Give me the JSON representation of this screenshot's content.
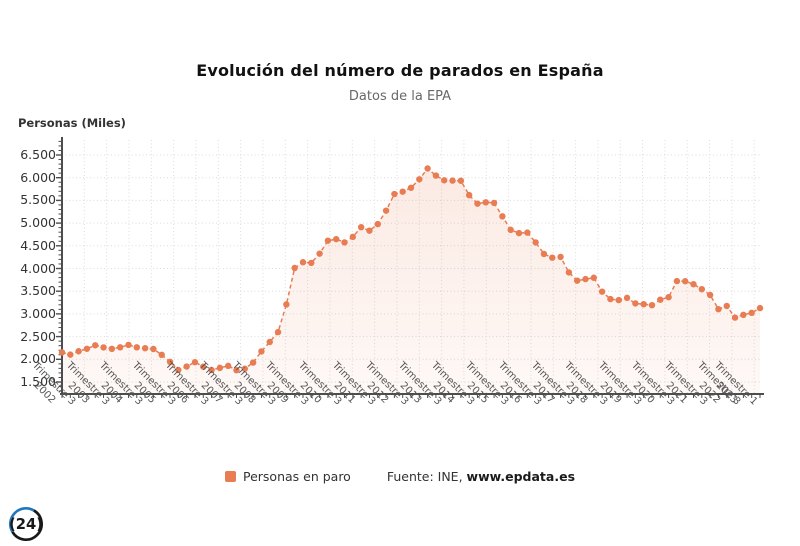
{
  "chart_data": {
    "type": "line",
    "title": "Evolución del número de parados en España",
    "subtitle": "Datos de la EPA",
    "y_axis_title": "Personas (Miles)",
    "legend": "Personas en paro",
    "source_prefix": "Fuente: INE, ",
    "source_site": "www.epdata.es",
    "ylim": [
      1500,
      6500
    ],
    "grid": true,
    "legend_position": "bottom",
    "line_style": "dashed",
    "categories": [
      "Trimestre 1 2002",
      "Trimestre 2 2002",
      "Trimestre 3 2002",
      "Trimestre 4 2002",
      "Trimestre 1 2003",
      "Trimestre 2 2003",
      "Trimestre 3 2003",
      "Trimestre 4 2003",
      "Trimestre 1 2004",
      "Trimestre 2 2004",
      "Trimestre 3 2004",
      "Trimestre 4 2004",
      "Trimestre 1 2005",
      "Trimestre 2 2005",
      "Trimestre 3 2005",
      "Trimestre 4 2005",
      "Trimestre 1 2006",
      "Trimestre 2 2006",
      "Trimestre 3 2006",
      "Trimestre 4 2006",
      "Trimestre 1 2007",
      "Trimestre 2 2007",
      "Trimestre 3 2007",
      "Trimestre 4 2007",
      "Trimestre 1 2008",
      "Trimestre 2 2008",
      "Trimestre 3 2008",
      "Trimestre 4 2008",
      "Trimestre 1 2009",
      "Trimestre 2 2009",
      "Trimestre 3 2009",
      "Trimestre 4 2009",
      "Trimestre 1 2010",
      "Trimestre 2 2010",
      "Trimestre 3 2010",
      "Trimestre 4 2010",
      "Trimestre 1 2011",
      "Trimestre 2 2011",
      "Trimestre 3 2011",
      "Trimestre 4 2011",
      "Trimestre 1 2012",
      "Trimestre 2 2012",
      "Trimestre 3 2012",
      "Trimestre 4 2012",
      "Trimestre 1 2013",
      "Trimestre 2 2013",
      "Trimestre 3 2013",
      "Trimestre 4 2013",
      "Trimestre 1 2014",
      "Trimestre 2 2014",
      "Trimestre 3 2014",
      "Trimestre 4 2014",
      "Trimestre 1 2015",
      "Trimestre 2 2015",
      "Trimestre 3 2015",
      "Trimestre 4 2015",
      "Trimestre 1 2016",
      "Trimestre 2 2016",
      "Trimestre 3 2016",
      "Trimestre 4 2016",
      "Trimestre 1 2017",
      "Trimestre 2 2017",
      "Trimestre 3 2017",
      "Trimestre 4 2017",
      "Trimestre 1 2018",
      "Trimestre 2 2018",
      "Trimestre 3 2018",
      "Trimestre 4 2018",
      "Trimestre 1 2019",
      "Trimestre 2 2019",
      "Trimestre 3 2019",
      "Trimestre 4 2019",
      "Trimestre 1 2020",
      "Trimestre 2 2020",
      "Trimestre 3 2020",
      "Trimestre 4 2020",
      "Trimestre 1 2021",
      "Trimestre 2 2021",
      "Trimestre 3 2021",
      "Trimestre 4 2021",
      "Trimestre 1 2022",
      "Trimestre 2 2022",
      "Trimestre 3 2022",
      "Trimestre 4 2022",
      "Trimestre 1 2023"
    ],
    "values": [
      2152,
      2103,
      2177,
      2232,
      2309,
      2262,
      2231,
      2264,
      2317,
      2264,
      2245,
      2227,
      2099,
      1945,
      1765,
      1841,
      1936,
      1837,
      1765,
      1811,
      1856,
      1760,
      1792,
      1928,
      2174,
      2382,
      2599,
      3208,
      4011,
      4138,
      4123,
      4327,
      4613,
      4646,
      4575,
      4697,
      4910,
      4834,
      4978,
      5274,
      5640,
      5693,
      5778,
      5965,
      6203,
      6047,
      5943,
      5936,
      5933,
      5616,
      5428,
      5458,
      5445,
      5149,
      4851,
      4780,
      4791,
      4575,
      4321,
      4238,
      4255,
      3914,
      3732,
      3767,
      3796,
      3490,
      3326,
      3304,
      3354,
      3231,
      3214,
      3192,
      3313,
      3368,
      3723,
      3720,
      3654,
      3544,
      3417,
      3104,
      3175,
      2919,
      2980,
      3024,
      3128
    ],
    "y_ticks": [
      {
        "value": 1500,
        "label": "1.500"
      },
      {
        "value": 2000,
        "label": "2.000"
      },
      {
        "value": 2500,
        "label": "2.500"
      },
      {
        "value": 3000,
        "label": "3.000"
      },
      {
        "value": 3500,
        "label": "3.500"
      },
      {
        "value": 4000,
        "label": "4.000"
      },
      {
        "value": 4500,
        "label": "4.500"
      },
      {
        "value": 5000,
        "label": "5.000"
      },
      {
        "value": 5500,
        "label": "5.500"
      },
      {
        "value": 6000,
        "label": "6.000"
      },
      {
        "value": 6500,
        "label": "6.500"
      }
    ],
    "x_tick_labels": [
      {
        "index": 2,
        "line1": "Trimestre 3",
        "line2": "2002"
      },
      {
        "index": 6,
        "line1": "Trimestre 3",
        "line2": "2003"
      },
      {
        "index": 10,
        "line1": "Trimestre 3",
        "line2": "2004"
      },
      {
        "index": 14,
        "line1": "Trimestre 3",
        "line2": "2005"
      },
      {
        "index": 18,
        "line1": "Trimestre 3",
        "line2": "2006"
      },
      {
        "index": 22,
        "line1": "Trimestre 3",
        "line2": "2007"
      },
      {
        "index": 26,
        "line1": "Trimestre 3",
        "line2": "2008"
      },
      {
        "index": 30,
        "line1": "Trimestre 3",
        "line2": "2009"
      },
      {
        "index": 34,
        "line1": "Trimestre 3",
        "line2": "2010"
      },
      {
        "index": 38,
        "line1": "Trimestre 3",
        "line2": "2011"
      },
      {
        "index": 42,
        "line1": "Trimestre 3",
        "line2": "2012"
      },
      {
        "index": 46,
        "line1": "Trimestre 3",
        "line2": "2013"
      },
      {
        "index": 50,
        "line1": "Trimestre 3",
        "line2": "2014"
      },
      {
        "index": 54,
        "line1": "Trimestre 3",
        "line2": "2015"
      },
      {
        "index": 58,
        "line1": "Trimestre 3",
        "line2": "2016"
      },
      {
        "index": 62,
        "line1": "Trimestre 3",
        "line2": "2017"
      },
      {
        "index": 66,
        "line1": "Trimestre 3",
        "line2": "2018"
      },
      {
        "index": 70,
        "line1": "Trimestre 3",
        "line2": "2019"
      },
      {
        "index": 74,
        "line1": "Trimestre 3",
        "line2": "2020"
      },
      {
        "index": 78,
        "line1": "Trimestre 3",
        "line2": "2021"
      },
      {
        "index": 82,
        "line1": "Trimestre 3",
        "line2": "2022"
      },
      {
        "index": 84,
        "line1": "Trimestre 1",
        "line2": "2023"
      }
    ],
    "colors": {
      "line": "#e87c52",
      "point": "#e87c52",
      "area_top": "rgba(232,124,82,0.16)",
      "area_bottom": "rgba(232,124,82,0.05)",
      "grid": "#dcdcdc",
      "axis": "#4d4d4d",
      "title": "#111111",
      "subtitle": "#686868",
      "tick_text": "#555555",
      "logo_blue": "#1f78be",
      "logo_black": "#191919"
    }
  },
  "logo": {
    "text": "(24)"
  }
}
